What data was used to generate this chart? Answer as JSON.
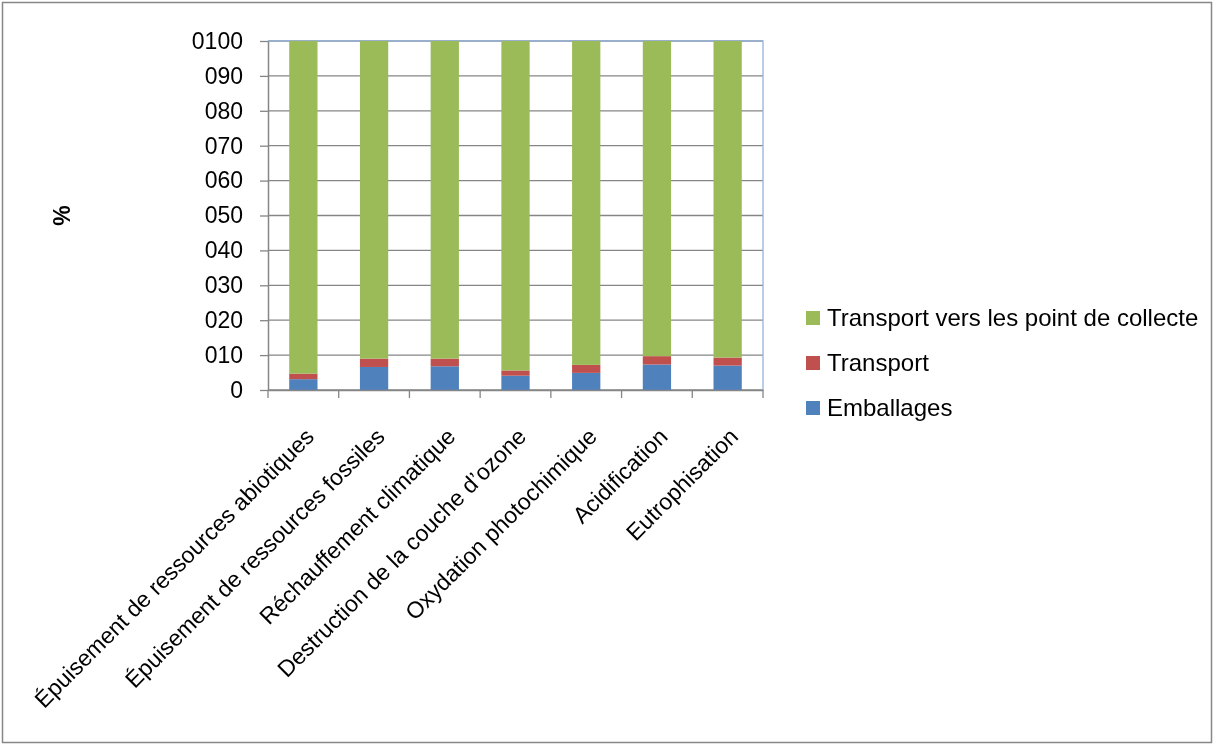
{
  "chart_data": {
    "type": "bar",
    "stacked": true,
    "ylabel": "%",
    "categories": [
      "Épuisement de ressources abiotiques",
      "Épuisement de ressources fossiles",
      "Réchauffement climatique",
      "Destruction de la couche d’ozone",
      "Oxydation photochimique",
      "Acidification",
      "Eutrophisation"
    ],
    "series": [
      {
        "name": "Emballages",
        "color": "#4f81bd",
        "values": [
          3.1,
          6.6,
          6.8,
          4.1,
          4.9,
          7.3,
          7.0
        ]
      },
      {
        "name": "Transport",
        "color": "#c0504d",
        "values": [
          1.6,
          2.4,
          2.2,
          1.5,
          2.3,
          2.4,
          2.3
        ]
      },
      {
        "name": "Transport vers les point de collecte",
        "color": "#9bbb59",
        "values": [
          95.3,
          91.0,
          91.0,
          94.4,
          92.8,
          90.3,
          90.7
        ]
      }
    ],
    "ylim": [
      0,
      100
    ],
    "yticks": [
      0,
      {
        "value": 10,
        "label": "010"
      },
      {
        "value": 20,
        "label": "020"
      },
      {
        "value": 30,
        "label": "030"
      },
      {
        "value": 40,
        "label": "040"
      },
      {
        "value": 50,
        "label": "050"
      },
      {
        "value": 60,
        "label": "060"
      },
      {
        "value": 70,
        "label": "070"
      },
      {
        "value": 80,
        "label": "080"
      },
      {
        "value": 90,
        "label": "090"
      },
      {
        "value": 100,
        "label": "0100"
      }
    ],
    "grid": "y",
    "legend": "right"
  }
}
